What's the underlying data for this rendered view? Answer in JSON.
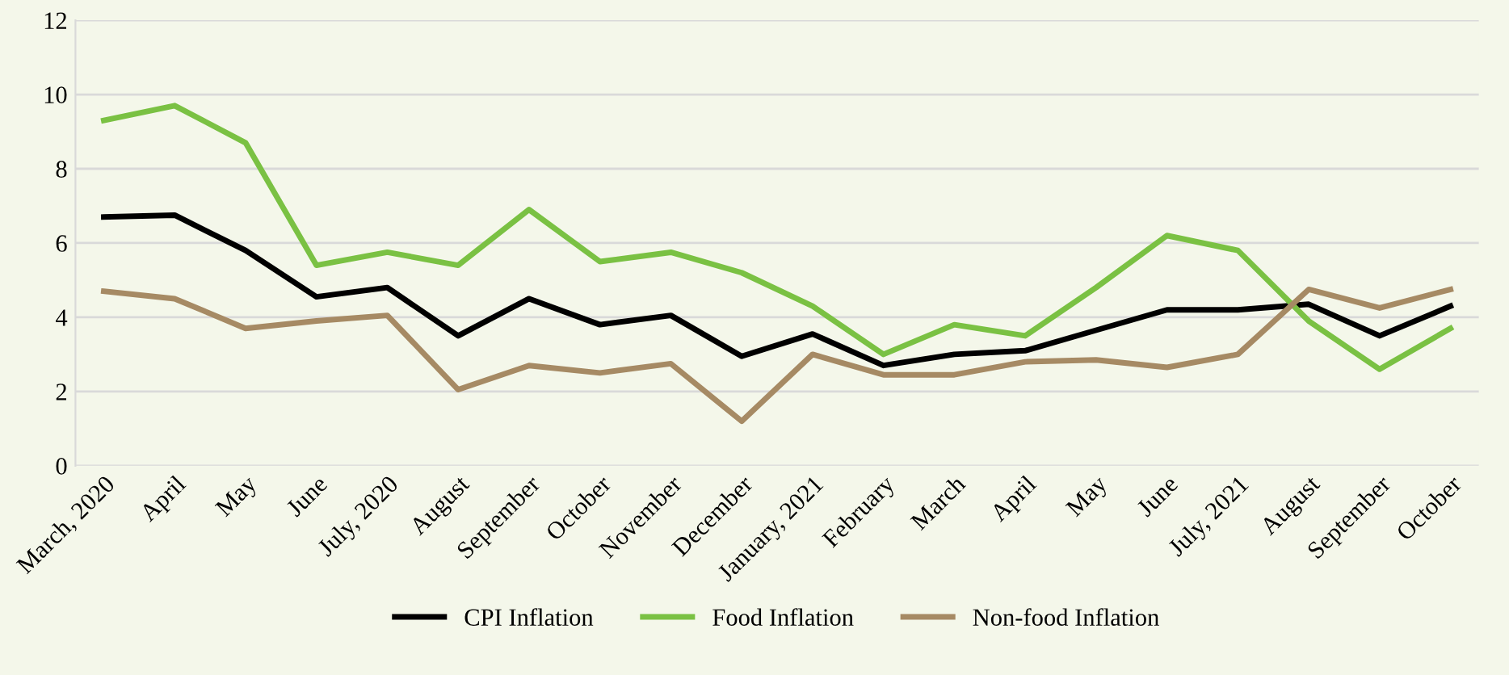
{
  "chart_data": {
    "type": "line",
    "categories": [
      "March, 2020",
      "April",
      "May",
      "June",
      "July, 2020",
      "August",
      "September",
      "October",
      "November",
      "December",
      "January, 2021",
      "February",
      "March",
      "April",
      "May",
      "June",
      "July, 2021",
      "August",
      "September",
      "October"
    ],
    "series": [
      {
        "name": "CPI Inflation",
        "color": "#000000",
        "values": [
          6.7,
          6.75,
          5.8,
          4.55,
          4.8,
          3.5,
          4.5,
          3.8,
          4.05,
          2.95,
          3.55,
          2.7,
          3.0,
          3.1,
          3.65,
          4.2,
          4.2,
          4.35,
          3.5,
          4.3
        ]
      },
      {
        "name": "Food Inflation",
        "color": "#7ac143",
        "values": [
          9.3,
          9.7,
          8.7,
          5.4,
          5.75,
          5.4,
          6.9,
          5.5,
          5.75,
          5.2,
          4.3,
          3.0,
          3.8,
          3.5,
          4.8,
          6.2,
          5.8,
          3.9,
          2.6,
          3.7
        ]
      },
      {
        "name": "Non-food Inflation",
        "color": "#a68a64",
        "values": [
          4.7,
          4.5,
          3.7,
          3.9,
          4.05,
          2.05,
          2.7,
          2.5,
          2.75,
          1.2,
          3.0,
          2.45,
          2.45,
          2.8,
          2.85,
          2.65,
          3.0,
          4.75,
          4.25,
          4.75
        ]
      }
    ],
    "ylim": [
      0,
      12
    ],
    "yticks": [
      0,
      2,
      4,
      6,
      8,
      10,
      12
    ],
    "grid": "y",
    "legend": "bottom",
    "marker": "none",
    "line_style": "solid"
  }
}
